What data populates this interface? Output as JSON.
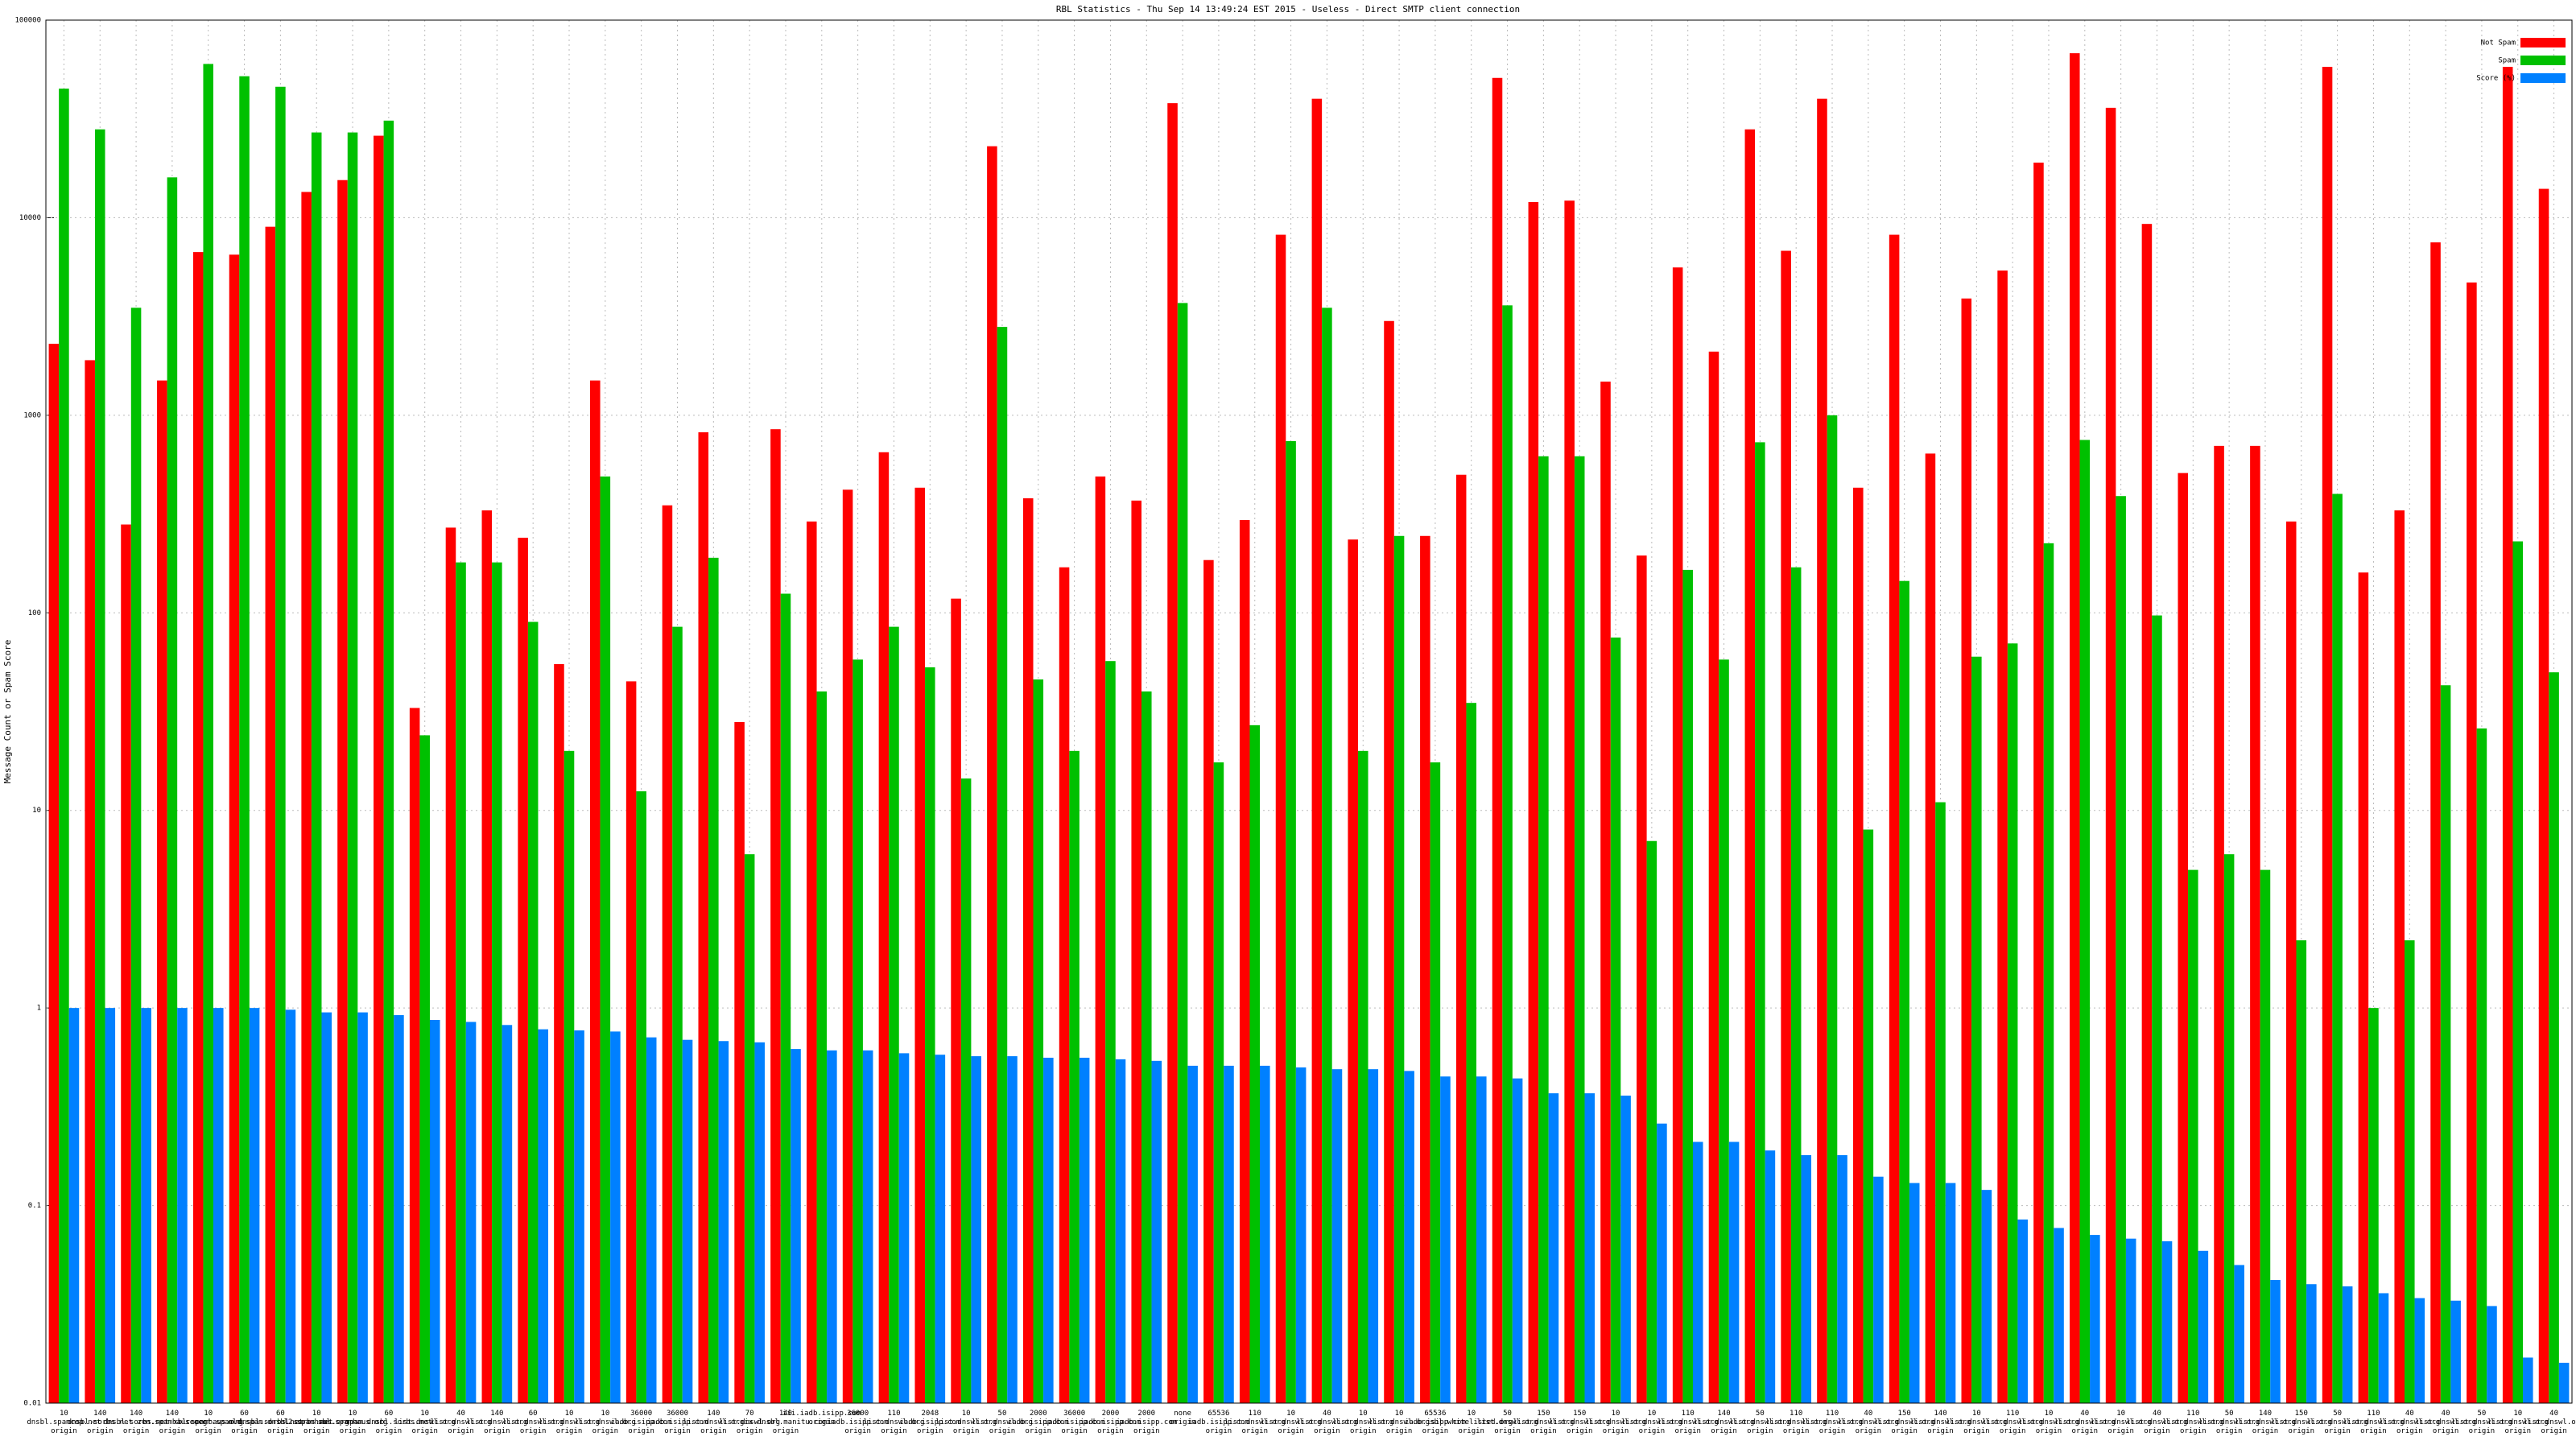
{
  "chart_data": {
    "type": "bar",
    "title": "RBL Statistics - Thu Sep 14 13:49:24 EST 2015 - Useless - Direct SMTP client connection",
    "y_label": "Message Count or Spam Score",
    "log_scale": true,
    "grid": true,
    "legend": "top-right",
    "ylim": [
      0.01,
      100000
    ],
    "yticks": [
      0.01,
      0.1,
      1,
      10,
      100,
      1000,
      10000,
      100000
    ],
    "categories": [
      "10 dnsbl.spamcop.net origin",
      "140 dnsbl.sorbs.net origin",
      "140 dnsbl.sorbs.net origin",
      "140 zen.spamhaus.org origin",
      "10 xbl.spamhaus.org origin",
      "60 recent.spam.dnsbl.sorbs.net origin",
      "60 old.spam.dnsbl.sorbs.net origin",
      "10 l2.spamhaus.org origin",
      "10 sbl.spamhaus.org origin",
      "60 spam.dnsbl.sorbs.net origin",
      "10 list.dnswl.org origin",
      "40 list.dnswl.org origin",
      "140 list.dnswl.org origin",
      "60 list.dnswl.org origin",
      "10 list.dnswl.org origin",
      "10 list.dnswl.org origin",
      "36000 iadb.isipp.com origin",
      "36000 iadb.isipp.com origin",
      "140 list.dnswl.org origin",
      "70 list.dnswl.org origin",
      "140 ix.dnsbl.manitu.com origin",
      "iii.iadb.isipp.com origin",
      "36000 iadb.isipp.com origin",
      "110 list.dnswl.org origin",
      "2048 iadb.isipp.com origin",
      "10 list.dnswl.org origin",
      "50 list.dnswl.org origin",
      "2000 iadb.isipp.com origin",
      "36000 iadb.isipp.com origin",
      "2000 iadb.isipp.com origin",
      "2000 iadb.isipp.com origin",
      "none origin",
      "65536 iadb.isipp.com origin",
      "110 list.dnswl.org origin",
      "10 list.dnswl.org origin",
      "40 list.dnswl.org origin",
      "10 list.dnswl.org origin",
      "10 list.dnswl.org origin",
      "65536 iadb.isipp.com origin",
      "10 sbl.whitelisted.org origin",
      "50 list.dnswl.org origin",
      "150 list.dnswl.org origin",
      "150 list.dnswl.org origin",
      "10 list.dnswl.org origin",
      "10 list.dnswl.org origin",
      "110 list.dnswl.org origin",
      "140 list.dnswl.org origin",
      "50 list.dnswl.org origin",
      "110 list.dnswl.org origin",
      "110 list.dnswl.org origin",
      "40 list.dnswl.org origin",
      "150 list.dnswl.org origin",
      "140 list.dnswl.org origin",
      "10 list.dnswl.org origin",
      "110 list.dnswl.org origin",
      "10 list.dnswl.org origin",
      "40 list.dnswl.org origin",
      "10 list.dnswl.org origin",
      "40 list.dnswl.org origin",
      "110 list.dnswl.org origin",
      "50 list.dnswl.org origin",
      "140 list.dnswl.org origin",
      "150 list.dnswl.org origin",
      "50 list.dnswl.org origin",
      "110 list.dnswl.org origin",
      "40 list.dnswl.org origin",
      "40 list.dnswl.org origin",
      "50 list.dnswl.org origin",
      "10 list.dnswl.org origin",
      "40 list.dnswl.org origin"
    ],
    "series": [
      {
        "name": "Not Spam",
        "color": "#ff0000",
        "values": [
          2300,
          1900,
          280,
          1500,
          6700,
          6500,
          9000,
          13500,
          15500,
          26000,
          33,
          270,
          330,
          240,
          55,
          1500,
          45,
          350,
          820,
          28,
          850,
          290,
          420,
          650,
          430,
          118,
          23000,
          380,
          170,
          490,
          370,
          38000,
          185,
          295,
          8200,
          40000,
          235,
          3000,
          245,
          500,
          51000,
          12000,
          12200,
          1480,
          195,
          5600,
          2100,
          28000,
          6800,
          40000,
          430,
          8200,
          640,
          3900,
          5400,
          19000,
          68000,
          36000,
          9300,
          510,
          700,
          700,
          290,
          58000,
          160,
          330,
          7500,
          4700,
          58000,
          14000
        ]
      },
      {
        "name": "Spam",
        "color": "#00c000",
        "values": [
          45000,
          28000,
          3500,
          16000,
          60000,
          52000,
          46000,
          27000,
          27000,
          31000,
          24,
          180,
          180,
          90,
          20,
          490,
          12.5,
          85,
          190,
          6,
          125,
          40,
          58,
          85,
          53,
          14.5,
          2800,
          46,
          20,
          57,
          40,
          3700,
          17.5,
          27,
          740,
          3500,
          20,
          245,
          17.5,
          35,
          3600,
          620,
          620,
          75,
          7,
          165,
          58,
          730,
          170,
          1000,
          8,
          145,
          11,
          60,
          70,
          225,
          750,
          390,
          97,
          5,
          6,
          5,
          2.2,
          400,
          1,
          2.2,
          43,
          26,
          230,
          50
        ]
      },
      {
        "name": "Score (%)",
        "color": "#0080ff",
        "values": [
          1,
          1,
          1,
          1,
          1,
          1,
          0.98,
          0.95,
          0.95,
          0.92,
          0.87,
          0.85,
          0.82,
          0.78,
          0.77,
          0.76,
          0.71,
          0.69,
          0.68,
          0.67,
          0.62,
          0.61,
          0.61,
          0.59,
          0.58,
          0.57,
          0.57,
          0.56,
          0.56,
          0.55,
          0.54,
          0.51,
          0.51,
          0.51,
          0.5,
          0.49,
          0.49,
          0.48,
          0.45,
          0.45,
          0.44,
          0.37,
          0.37,
          0.36,
          0.26,
          0.21,
          0.21,
          0.19,
          0.18,
          0.18,
          0.14,
          0.13,
          0.13,
          0.12,
          0.085,
          0.077,
          0.071,
          0.068,
          0.066,
          0.059,
          0.05,
          0.042,
          0.04,
          0.039,
          0.036,
          0.034,
          0.033,
          0.031,
          0.017,
          0.016
        ]
      }
    ]
  }
}
